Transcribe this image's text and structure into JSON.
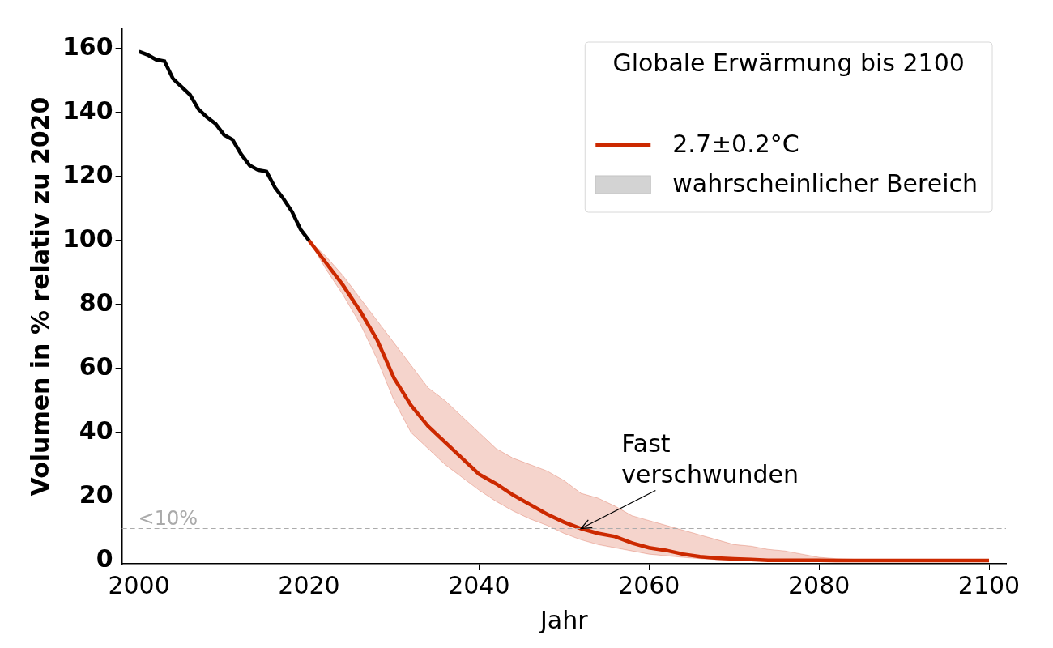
{
  "chart_data": {
    "type": "line",
    "x_label": "Jahr",
    "y_label": "Volumen in % relativ zu 2020",
    "xlim": [
      1998,
      2102
    ],
    "xticks": [
      2000,
      2020,
      2040,
      2060,
      2080,
      2100
    ],
    "ylim": [
      -1,
      166
    ],
    "yticks": [
      0,
      20,
      40,
      60,
      80,
      100,
      120,
      140,
      160
    ],
    "grid": false,
    "legend": "upper right",
    "legend_title": "Globale Erwärmung bis 2100",
    "series": [
      {
        "color": "#000000",
        "line_style": "solid",
        "x": [
          2000,
          2001,
          2002,
          2003,
          2004,
          2005,
          2006,
          2007,
          2008,
          2009,
          2010,
          2011,
          2012,
          2013,
          2014,
          2015,
          2016,
          2017,
          2018,
          2019,
          2020
        ],
        "values": [
          159,
          158,
          156.5,
          156,
          150.5,
          148,
          145.5,
          141,
          138.5,
          136.5,
          133,
          131.5,
          127,
          123.5,
          122,
          121.5,
          116.5,
          113,
          109,
          103.5,
          100
        ]
      },
      {
        "name": "2.7±0.2°C",
        "color": "#cc2900",
        "line_style": "solid",
        "x": [
          2020,
          2022,
          2024,
          2026,
          2028,
          2030,
          2032,
          2034,
          2036,
          2038,
          2040,
          2042,
          2044,
          2046,
          2048,
          2050,
          2052,
          2054,
          2056,
          2058,
          2060,
          2062,
          2064,
          2066,
          2068,
          2070,
          2072,
          2074,
          2076,
          2078,
          2080,
          2082,
          2084,
          2086,
          2088,
          2090,
          2092,
          2094,
          2096,
          2098,
          2100
        ],
        "values": [
          100,
          93,
          86,
          78,
          69,
          57,
          48.5,
          42,
          37,
          32,
          27,
          24,
          20.5,
          17.5,
          14.5,
          12,
          10,
          8.5,
          7.5,
          5.5,
          4,
          3.2,
          2,
          1.2,
          0.8,
          0.5,
          0.3,
          0.1,
          0.1,
          0.1,
          0.1,
          0,
          0,
          0,
          0,
          0,
          0,
          0,
          0,
          0,
          0
        ]
      }
    ],
    "band": {
      "name": "wahrscheinlicher Bereich",
      "color": "#d3d3d3",
      "x": [
        2020,
        2022,
        2024,
        2026,
        2028,
        2030,
        2032,
        2034,
        2036,
        2038,
        2040,
        2042,
        2044,
        2046,
        2048,
        2050,
        2052,
        2054,
        2056,
        2058,
        2060,
        2062,
        2064,
        2066,
        2068,
        2070,
        2072,
        2074,
        2076,
        2078,
        2080,
        2082,
        2084,
        2086,
        2088,
        2090,
        2092,
        2094,
        2096,
        2098,
        2100
      ],
      "low": [
        100,
        91,
        83,
        74,
        63,
        50,
        40,
        35,
        30,
        26,
        22,
        18.5,
        15.5,
        13,
        11,
        8.5,
        6.5,
        5,
        4,
        3,
        2,
        1.5,
        1,
        0.6,
        0.3,
        0.1,
        0,
        0,
        0,
        0,
        0,
        0,
        0,
        0,
        0,
        0,
        0,
        0,
        0,
        0,
        0
      ],
      "high": [
        100,
        95,
        89,
        82,
        75,
        68,
        61,
        54,
        50,
        45,
        40,
        35,
        32,
        30,
        28,
        25,
        21,
        19.5,
        17,
        14,
        12.5,
        11,
        9.5,
        8,
        6.5,
        5,
        4.5,
        3.5,
        3,
        2,
        1,
        0.6,
        0.4,
        0.3,
        0.2,
        0.1,
        0.1,
        0.1,
        0.1,
        0.1,
        0.1
      ]
    },
    "hline": {
      "y": 10,
      "label": "<10%",
      "color": "#aaaaaa",
      "line_style": "dashed"
    },
    "annotations": [
      {
        "text": "Fast verschwunden",
        "x": 2052,
        "y": 10
      }
    ]
  }
}
